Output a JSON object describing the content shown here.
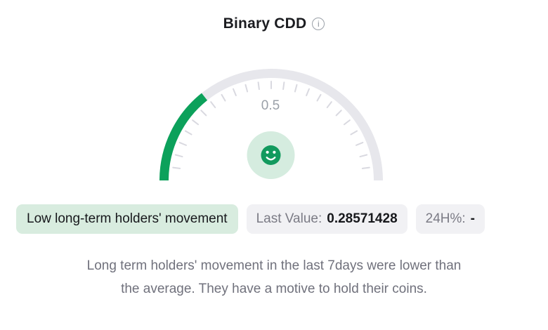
{
  "header": {
    "title": "Binary CDD",
    "info_glyph": "i"
  },
  "chart_data": {
    "type": "gauge",
    "title": "Binary CDD",
    "value": 0.28571428,
    "value_fraction": 0.28571428,
    "range": [
      0,
      1
    ],
    "center_label": "0.5",
    "tick_count": 23,
    "tick_step_deg": 7.5,
    "arc_color": "#0ca15b",
    "track_color": "#e7e7ec",
    "tick_color": "#d9d9e0",
    "center_label_color": "#9aa0a8",
    "mood_icon": "smiley-face-icon",
    "mood_circle_color": "#d5ecdf",
    "mood_face_color": "#129a5e"
  },
  "badges": {
    "sentiment": "Low long-term holders' movement",
    "last_value_label": "Last Value:",
    "last_value": "0.28571428",
    "change_label": "24H%:",
    "change_value": "-"
  },
  "description": {
    "line1": "Long term holders' movement in the last 7days were lower than",
    "line2": "the average. They have a motive to hold their coins."
  }
}
